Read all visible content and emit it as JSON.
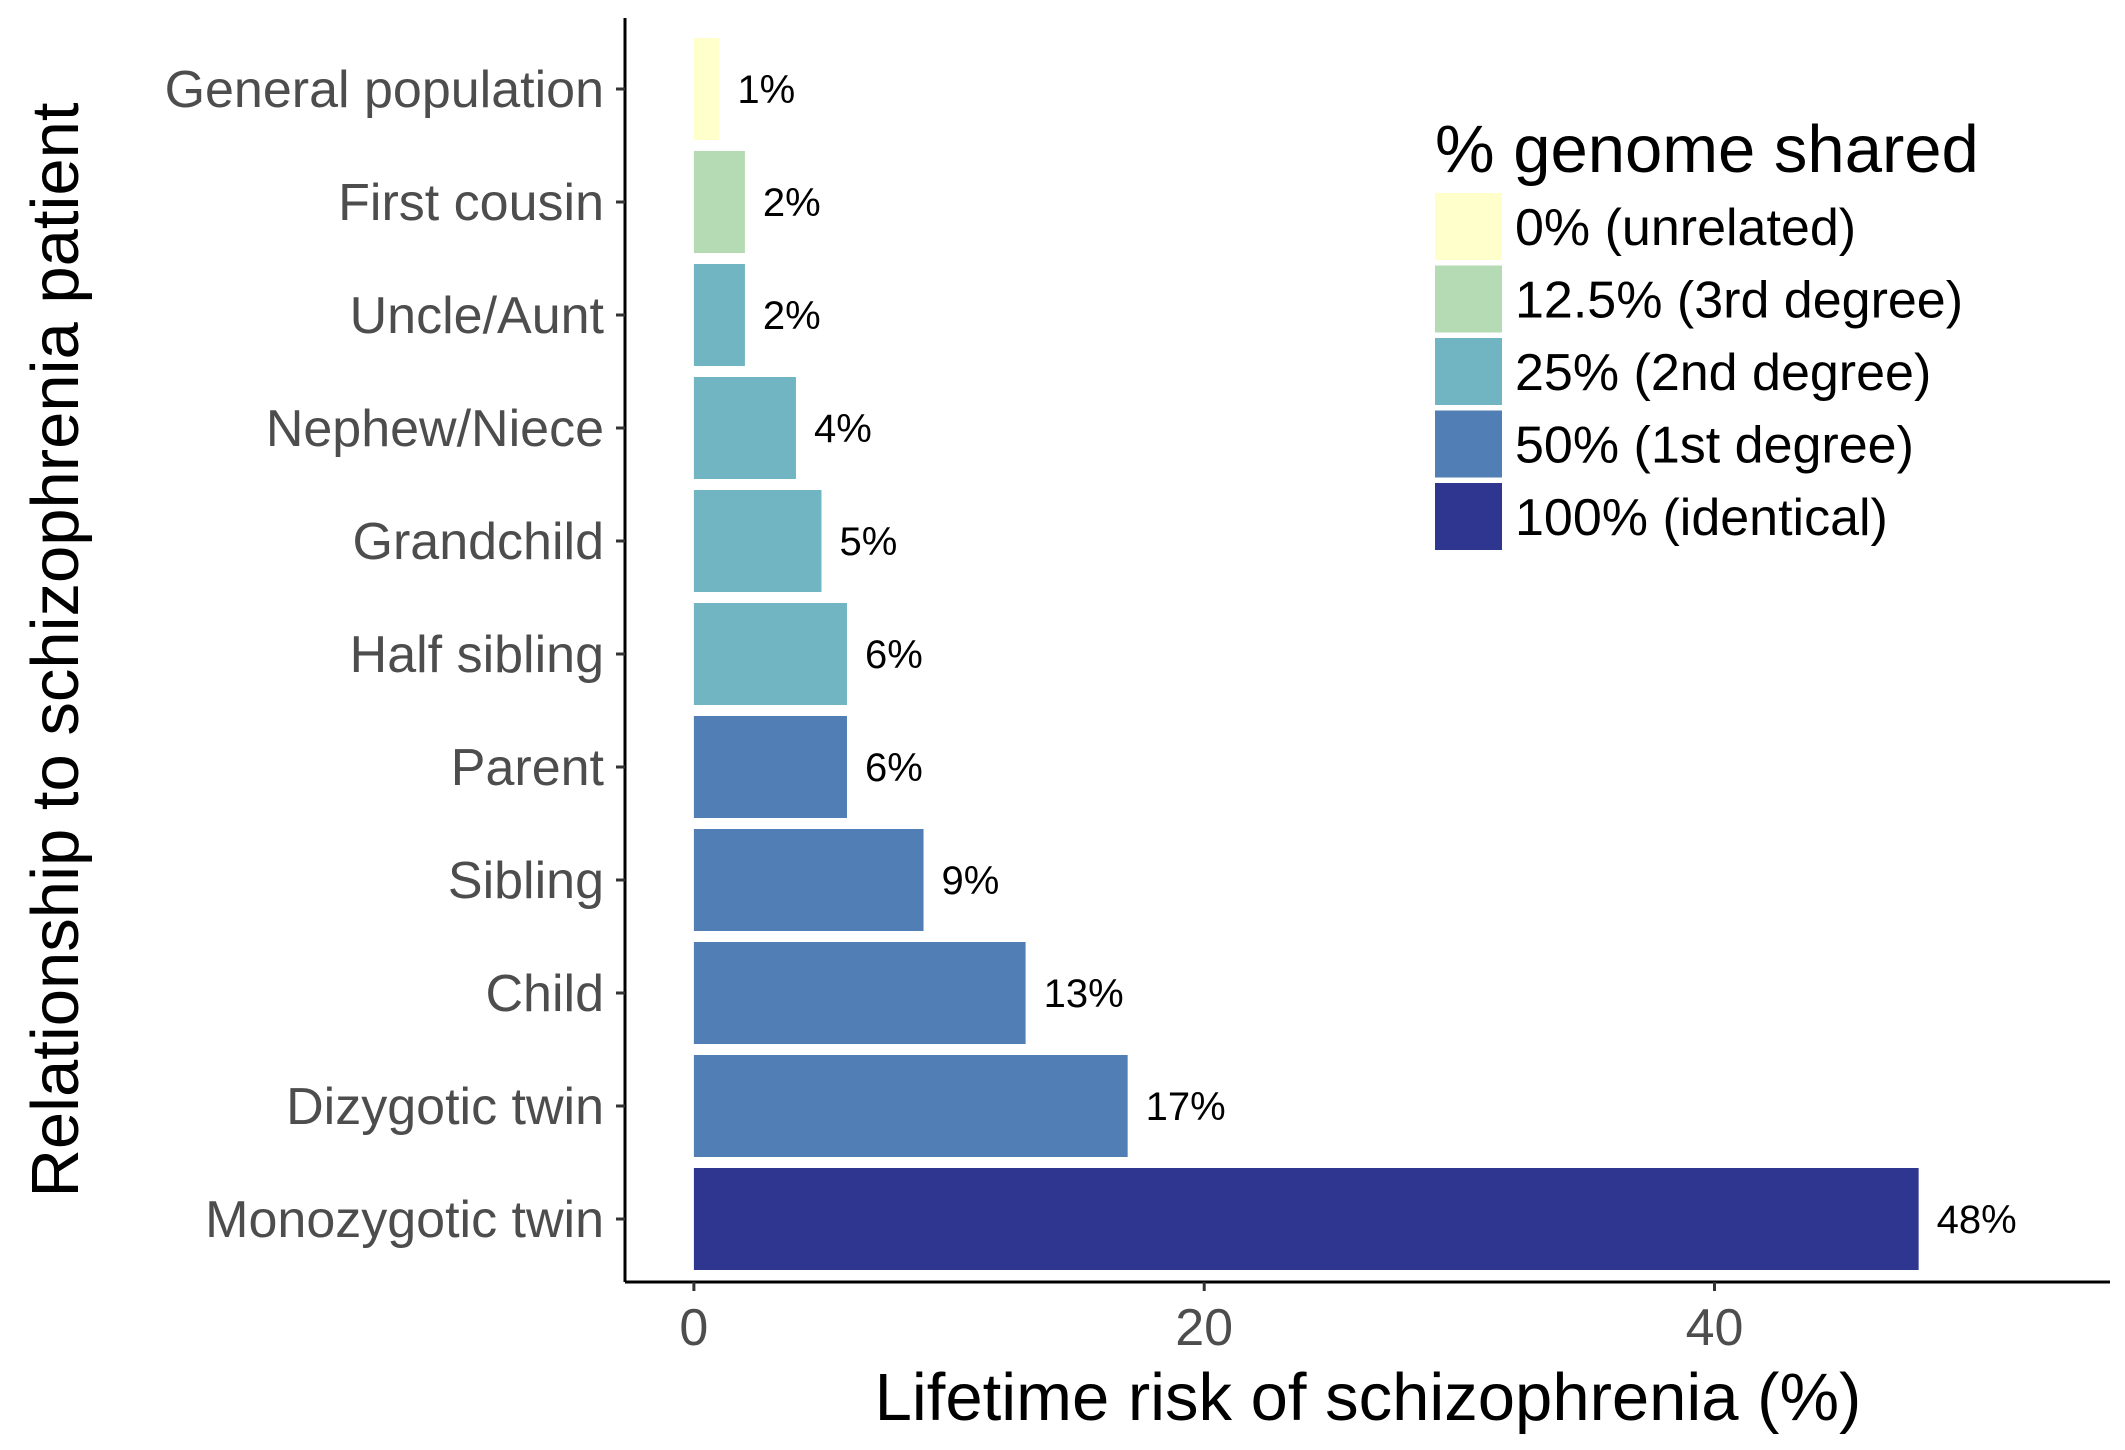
{
  "chart_data": {
    "type": "bar",
    "orientation": "horizontal",
    "xlabel": "Lifetime risk of schizophrenia (%)",
    "ylabel": "Relationship to schizophrenia patient",
    "xlim": [
      -2.7,
      55.5
    ],
    "xticks": [
      0,
      20,
      40
    ],
    "xtick_labels": [
      "0",
      "20",
      "40"
    ],
    "grid": false,
    "categories": [
      "General population",
      "First cousin",
      "Uncle/Aunt",
      "Nephew/Niece",
      "Grandchild",
      "Half sibling",
      "Parent",
      "Sibling",
      "Child",
      "Dizygotic twin",
      "Monozygotic twin"
    ],
    "values": [
      1,
      2,
      2,
      4,
      5,
      6,
      6,
      9,
      13,
      17,
      48
    ],
    "value_labels": [
      "1%",
      "2%",
      "2%",
      "4%",
      "5%",
      "6%",
      "6%",
      "9%",
      "13%",
      "17%",
      "48%"
    ],
    "groups": [
      0,
      1,
      2,
      2,
      2,
      2,
      3,
      3,
      3,
      3,
      4
    ],
    "legend": {
      "title": "% genome shared",
      "position": "top-right",
      "entries": [
        {
          "label": "0% (unrelated)",
          "color": "#ffffcc"
        },
        {
          "label": "12.5% (3rd degree)",
          "color": "#b4dbb4"
        },
        {
          "label": "25% (2nd degree)",
          "color": "#72b5c2"
        },
        {
          "label": "50% (1st degree)",
          "color": "#517eb5"
        },
        {
          "label": "100% (identical)",
          "color": "#2e368f"
        }
      ]
    }
  }
}
